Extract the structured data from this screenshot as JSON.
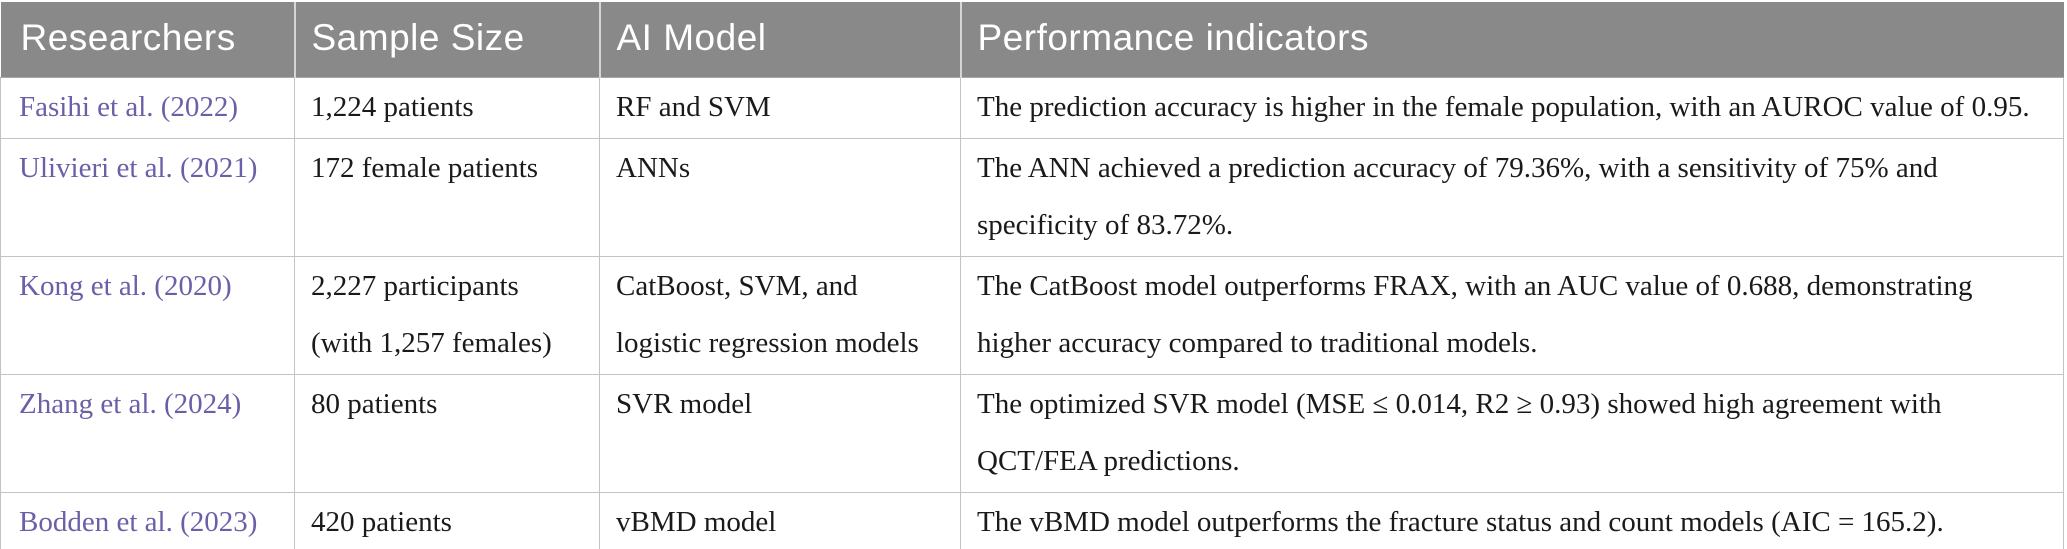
{
  "table": {
    "columns": [
      "Researchers",
      "Sample Size",
      "AI Model",
      "Performance indicators"
    ],
    "rows": [
      {
        "researchers": "Fasihi et al. (2022)",
        "sample_size": "1,224 patients",
        "ai_model": "RF and SVM",
        "performance": "The prediction accuracy is higher in the female population, with an AUROC value of 0.95."
      },
      {
        "researchers": "Ulivieri et al. (2021)",
        "sample_size": "172 female patients",
        "ai_model": "ANNs",
        "performance": "The ANN achieved a prediction accuracy of 79.36%, with a sensitivity of 75% and specificity of 83.72%."
      },
      {
        "researchers": "Kong et al. (2020)",
        "sample_size": "2,227 participants (with 1,257 females)",
        "ai_model": "CatBoost, SVM, and logistic regression models",
        "performance": "The CatBoost model outperforms FRAX, with an AUC value of 0.688, demonstrating higher accuracy compared to traditional models."
      },
      {
        "researchers": "Zhang et al. (2024)",
        "sample_size": "80 patients",
        "ai_model": "SVR model",
        "performance": "The optimized SVR model (MSE ≤ 0.014, R2 ≥ 0.93) showed high agreement with QCT/FEA predictions."
      },
      {
        "researchers": "Bodden et al. (2023)",
        "sample_size": "420 patients",
        "ai_model": "vBMD model",
        "performance": "The vBMD model outperforms the fracture status and count models (AIC = 165.2)."
      }
    ],
    "colors": {
      "header_bg": "#898989",
      "header_text": "#ffffff",
      "link": "#6b5fa7",
      "body_text": "#1a1a1a",
      "border": "#c3c3c3"
    }
  }
}
